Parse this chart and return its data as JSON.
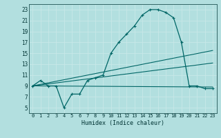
{
  "bg_color": "#b2dfdf",
  "grid_color": "#d0eeee",
  "line_color": "#006666",
  "marker_color": "#006666",
  "xlabel": "Humidex (Indice chaleur)",
  "xlim": [
    -0.5,
    23.5
  ],
  "ylim": [
    4,
    24
  ],
  "xticks": [
    0,
    1,
    2,
    3,
    4,
    5,
    6,
    7,
    8,
    9,
    10,
    11,
    12,
    13,
    14,
    15,
    16,
    17,
    18,
    19,
    20,
    21,
    22,
    23
  ],
  "yticks": [
    5,
    7,
    9,
    11,
    13,
    15,
    17,
    19,
    21,
    23
  ],
  "curve1_x": [
    0,
    1,
    2,
    3,
    4,
    5,
    6,
    7,
    8,
    9,
    10,
    11,
    12,
    13,
    14,
    15,
    16,
    17,
    18,
    19,
    20,
    21,
    22,
    23
  ],
  "curve1_y": [
    9,
    10,
    9,
    9,
    5,
    7.5,
    7.5,
    10,
    10.5,
    11,
    15,
    17,
    18.5,
    20,
    22,
    23,
    23,
    22.5,
    21.5,
    17,
    9,
    9,
    8.5,
    8.5
  ],
  "curve2_x": [
    0,
    23
  ],
  "curve2_y": [
    9,
    15.5
  ],
  "curve3_x": [
    0,
    23
  ],
  "curve3_y": [
    9,
    13.2
  ],
  "curve4_x": [
    0,
    23
  ],
  "curve4_y": [
    9,
    8.8
  ]
}
